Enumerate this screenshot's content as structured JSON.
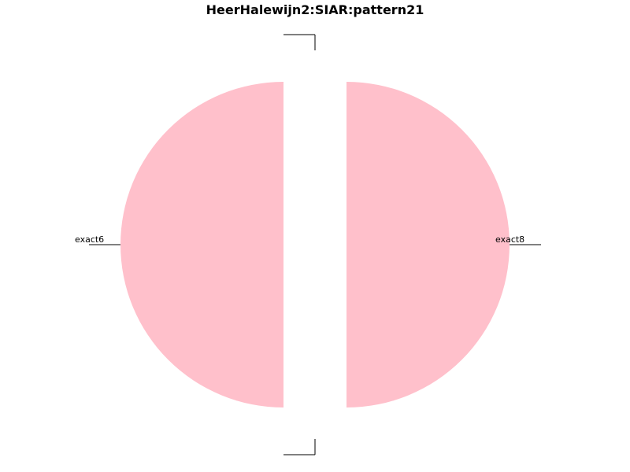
{
  "chart_data": {
    "type": "pie",
    "title": "HeerHalewijn2:SIAR:pattern21",
    "slice_color": "#ffc0cb",
    "slices": [
      {
        "label": "exact6",
        "value": 0.5
      },
      {
        "label": "",
        "value": 0.0
      },
      {
        "label": "exact8",
        "value": 0.5
      },
      {
        "label": "",
        "value": 0.0
      }
    ]
  }
}
